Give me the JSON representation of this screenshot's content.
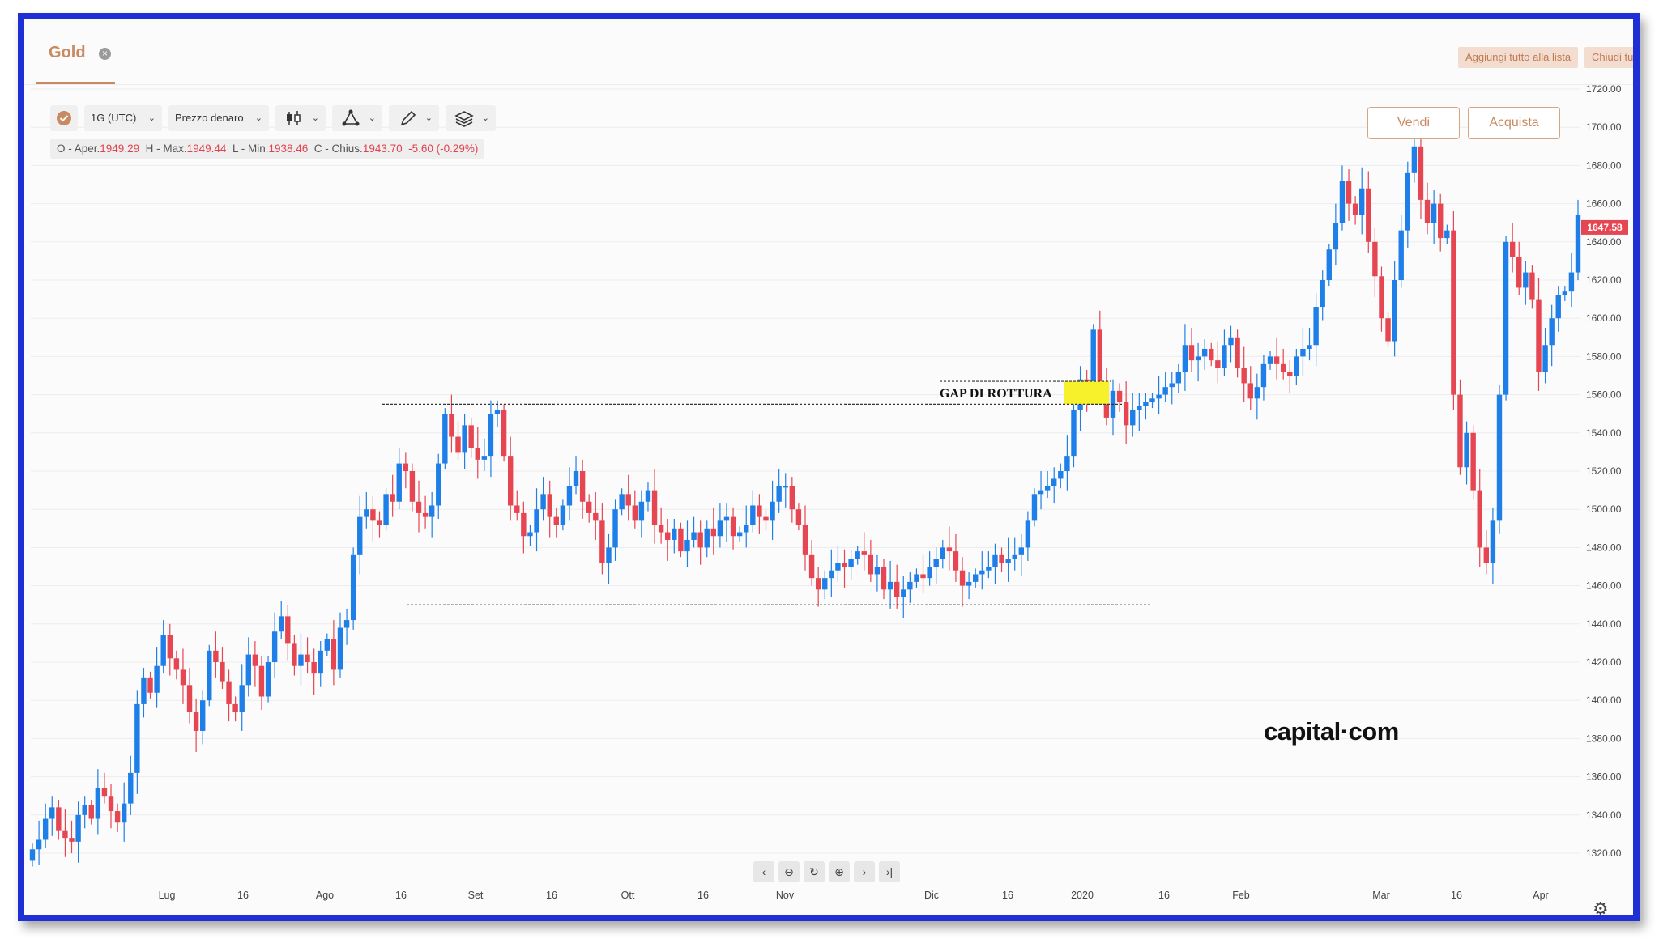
{
  "tab": {
    "title": "Gold",
    "close_icon": "close-icon"
  },
  "topbar": {
    "add_all_label": "Aggiungi tutto alla lista",
    "close_all_label": "Chiudi tu"
  },
  "toolbar": {
    "timeframe": "1G (UTC)",
    "price_type": "Prezzo denaro",
    "icons": [
      "check-badge-icon",
      "candlestick-icon",
      "indicators-icon",
      "pencil-icon",
      "layers-icon"
    ]
  },
  "ohlc": {
    "open_label": "O - Aper.",
    "open": "1949.29",
    "high_label": "H - Max.",
    "high": "1949.44",
    "low_label": "L - Min.",
    "low": "1938.46",
    "close_label": "C - Chius.",
    "close": "1943.70",
    "change": "-5.60 (-0.29%)"
  },
  "trade": {
    "sell": "Vendi",
    "buy": "Acquista"
  },
  "logo": "capital·com",
  "bottom_nav": [
    "chevron-left-icon",
    "zoom-out-icon",
    "reset-icon",
    "zoom-in-icon",
    "chevron-right-icon",
    "scroll-to-end-icon"
  ],
  "colors": {
    "up": "#1f7fe8",
    "down": "#e64552",
    "accent": "#c98a61",
    "price_tag": "#e64552",
    "annotation_highlight": "#f6f12a"
  },
  "chart_data": {
    "type": "candlestick",
    "instrument": "Gold",
    "x_tick_labels": [
      "Lug",
      "16",
      "Ago",
      "16",
      "Set",
      "16",
      "Ott",
      "16",
      "Nov",
      "Dic",
      "16",
      "2020",
      "16",
      "Feb",
      "Mar",
      "16",
      "Apr"
    ],
    "y_tick_labels": [
      "1720.00",
      "1700.00",
      "1680.00",
      "1660.00",
      "1640.00",
      "1620.00",
      "1600.00",
      "1580.00",
      "1560.00",
      "1540.00",
      "1520.00",
      "1500.00",
      "1480.00",
      "1460.00",
      "1440.00",
      "1420.00",
      "1400.00",
      "1380.00",
      "1360.00",
      "1340.00",
      "1320.00"
    ],
    "ylim": [
      1308,
      1728
    ],
    "last_price": "1647.58",
    "annotations": [
      {
        "text": "GAP DI ROTTURA",
        "gap_from": 1555,
        "gap_to": 1567
      },
      {
        "type": "resistance",
        "price": 1555
      },
      {
        "type": "support",
        "price": 1450
      }
    ],
    "closes": [
      1322,
      1327,
      1338,
      1344,
      1332,
      1328,
      1326,
      1340,
      1345,
      1338,
      1354,
      1350,
      1342,
      1336,
      1346,
      1362,
      1398,
      1412,
      1404,
      1418,
      1434,
      1422,
      1416,
      1408,
      1394,
      1384,
      1400,
      1426,
      1420,
      1410,
      1398,
      1394,
      1408,
      1424,
      1418,
      1402,
      1420,
      1436,
      1444,
      1430,
      1418,
      1424,
      1420,
      1414,
      1426,
      1432,
      1416,
      1438,
      1442,
      1476,
      1496,
      1500,
      1494,
      1492,
      1508,
      1504,
      1524,
      1520,
      1504,
      1498,
      1496,
      1502,
      1524,
      1550,
      1538,
      1530,
      1544,
      1532,
      1526,
      1528,
      1550,
      1552,
      1528,
      1502,
      1498,
      1486,
      1488,
      1500,
      1508,
      1496,
      1492,
      1502,
      1512,
      1520,
      1504,
      1498,
      1494,
      1472,
      1480,
      1500,
      1508,
      1502,
      1494,
      1504,
      1510,
      1492,
      1488,
      1484,
      1490,
      1478,
      1484,
      1488,
      1480,
      1490,
      1486,
      1494,
      1496,
      1486,
      1488,
      1492,
      1502,
      1496,
      1494,
      1504,
      1512,
      1512,
      1500,
      1492,
      1476,
      1464,
      1458,
      1464,
      1468,
      1472,
      1470,
      1474,
      1478,
      1476,
      1466,
      1470,
      1458,
      1462,
      1454,
      1458,
      1462,
      1466,
      1464,
      1470,
      1474,
      1480,
      1478,
      1468,
      1460,
      1462,
      1466,
      1468,
      1470,
      1476,
      1472,
      1474,
      1476,
      1480,
      1494,
      1508,
      1510,
      1512,
      1516,
      1520,
      1528,
      1552,
      1568,
      1558,
      1594,
      1566,
      1548,
      1562,
      1556,
      1544,
      1552,
      1554,
      1556,
      1558,
      1560,
      1564,
      1566,
      1572,
      1586,
      1578,
      1580,
      1584,
      1578,
      1574,
      1586,
      1590,
      1574,
      1566,
      1558,
      1564,
      1576,
      1580,
      1576,
      1572,
      1570,
      1580,
      1584,
      1586,
      1606,
      1620,
      1636,
      1650,
      1672,
      1660,
      1654,
      1668,
      1640,
      1622,
      1600,
      1588,
      1620,
      1646,
      1676,
      1690,
      1662,
      1650,
      1660,
      1642,
      1646,
      1560,
      1522,
      1540,
      1510,
      1480,
      1472,
      1494,
      1560,
      1640,
      1632,
      1616,
      1624,
      1610,
      1572,
      1586,
      1600,
      1612,
      1614,
      1624,
      1654
    ]
  }
}
